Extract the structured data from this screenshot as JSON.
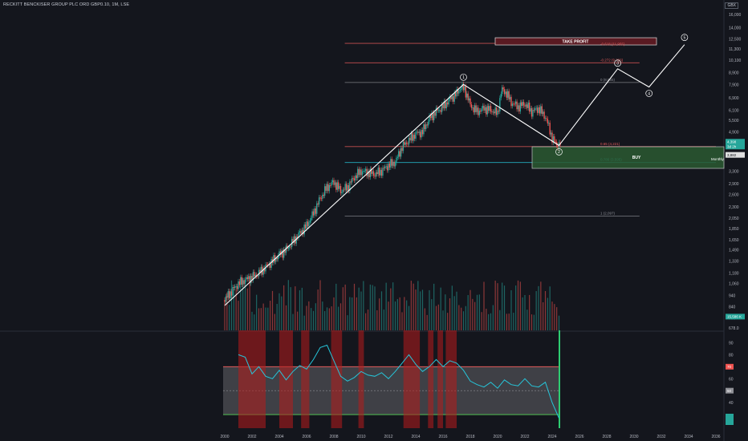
{
  "header": {
    "title": "RECKITT BENCKISER GROUP PLC ORD GBP0.10, 1M, LSE",
    "currency": "GBX"
  },
  "colors": {
    "background": "#14161d",
    "candle_up": "#26a69a",
    "candle_down": "#ef5350",
    "wave_line": "#ffffff",
    "take_profit": "#e35a5a",
    "buy_zone": "#2e7d32",
    "rsi_line": "#26c6da",
    "rsi_band": "#8f9096",
    "highlight_red": "#b71c1c"
  },
  "chart_data": [
    {
      "type": "line",
      "title": "RECKITT BENCKISER GROUP PLC ORD GBP0.10, 1M, LSE",
      "scale": "log",
      "y_ticks": [
        "16,000",
        "14,000",
        "12,500",
        "11,300",
        "10,100",
        "8,900",
        "7,900",
        "6,900",
        "6,100",
        "5,500",
        "4,900",
        "3,900",
        "3,300",
        "2,900",
        "2,600",
        "2,300",
        "2,050",
        "1,850",
        "1,650",
        "1,490",
        "1,330",
        "1,180",
        "1,060",
        "940",
        "840",
        "750",
        "678.0"
      ],
      "x_ticks": [
        "2000",
        "2002",
        "2004",
        "2006",
        "2008",
        "2010",
        "2012",
        "2014",
        "2016",
        "2018",
        "2020",
        "2022",
        "2024",
        "2026",
        "2028",
        "2030",
        "2032",
        "2034",
        "2036"
      ],
      "price_series": {
        "name": "Close",
        "x": [
          2000.0,
          2000.5,
          2001.0,
          2001.5,
          2002.0,
          2002.5,
          2003.0,
          2003.5,
          2004.0,
          2004.5,
          2005.0,
          2005.5,
          2006.0,
          2006.5,
          2007.0,
          2007.5,
          2008.0,
          2008.5,
          2009.0,
          2009.5,
          2010.0,
          2010.5,
          2011.0,
          2011.5,
          2012.0,
          2012.5,
          2013.0,
          2013.5,
          2014.0,
          2014.5,
          2015.0,
          2015.5,
          2016.0,
          2016.5,
          2017.0,
          2017.3,
          2017.6,
          2018.0,
          2018.5,
          2019.0,
          2019.5,
          2020.0,
          2020.3,
          2020.6,
          2021.0,
          2021.5,
          2022.0,
          2022.5,
          2023.0,
          2023.5,
          2024.0,
          2024.3,
          2024.6
        ],
        "y": [
          900,
          980,
          1060,
          1100,
          1130,
          1180,
          1250,
          1330,
          1420,
          1490,
          1620,
          1760,
          1900,
          2150,
          2500,
          2800,
          2950,
          2700,
          2800,
          3100,
          3300,
          3250,
          3200,
          3300,
          3500,
          3600,
          4200,
          4500,
          4800,
          4900,
          5600,
          6000,
          6300,
          6800,
          7200,
          7700,
          7500,
          6400,
          6000,
          6200,
          6100,
          5900,
          7500,
          7300,
          6600,
          6300,
          6500,
          6000,
          6200,
          5700,
          4600,
          4300,
          4350
        ]
      },
      "annotations": [
        {
          "text": "TAKE PROFIT",
          "level": "-0.618 (11,955)"
        },
        {
          "text": "-0.272 (9,826)"
        },
        {
          "text": "0 (8,055)"
        },
        {
          "text": "0.65 (4,221)"
        },
        {
          "text": "0.786 (3,595)"
        },
        {
          "text": "1 (2,097)"
        },
        {
          "text": "BUY"
        },
        {
          "text": "Monthly"
        }
      ],
      "wave_labels": [
        "1",
        "2",
        "3",
        "4",
        "5"
      ],
      "wave_points": {
        "x": [
          2000.0,
          2017.5,
          2024.5,
          2028.8,
          2031.1,
          2033.7
        ],
        "y": [
          850,
          7900,
          4270,
          9250,
          7700,
          11800
        ]
      },
      "price_tags": [
        "4,398",
        "3d 2h",
        "3,882",
        "15,586 K"
      ],
      "volume_note": "monthly volume bars",
      "grid": false,
      "legend": "none"
    },
    {
      "type": "line",
      "title": "",
      "y_ticks": [
        "90",
        "80",
        "70",
        "60",
        "50",
        "40"
      ],
      "ylim": [
        20,
        95
      ],
      "band": [
        30,
        70
      ],
      "markers": [
        "70",
        "50"
      ],
      "series": [
        {
          "x": [
            2001.0,
            2001.5,
            2002.0,
            2002.5,
            2003.0,
            2003.5,
            2004.0,
            2004.5,
            2005.0,
            2005.5,
            2006.0,
            2006.5,
            2007.0,
            2007.5,
            2008.0,
            2008.5,
            2009.0,
            2009.5,
            2010.0,
            2010.5,
            2011.0,
            2011.5,
            2012.0,
            2012.5,
            2013.0,
            2013.5,
            2014.0,
            2014.5,
            2015.0,
            2015.5,
            2016.0,
            2016.5,
            2017.0,
            2017.5,
            2018.0,
            2018.5,
            2019.0,
            2019.5,
            2020.0,
            2020.5,
            2021.0,
            2021.5,
            2022.0,
            2022.5,
            2023.0,
            2023.5,
            2024.0,
            2024.5
          ],
          "y": [
            80,
            78,
            64,
            70,
            62,
            60,
            67,
            59,
            66,
            71,
            68,
            76,
            86,
            88,
            75,
            62,
            58,
            61,
            66,
            63,
            62,
            65,
            60,
            66,
            73,
            80,
            72,
            66,
            70,
            76,
            70,
            75,
            73,
            67,
            58,
            55,
            53,
            57,
            52,
            59,
            55,
            54,
            60,
            54,
            53,
            57,
            40,
            27
          ]
        }
      ]
    }
  ]
}
